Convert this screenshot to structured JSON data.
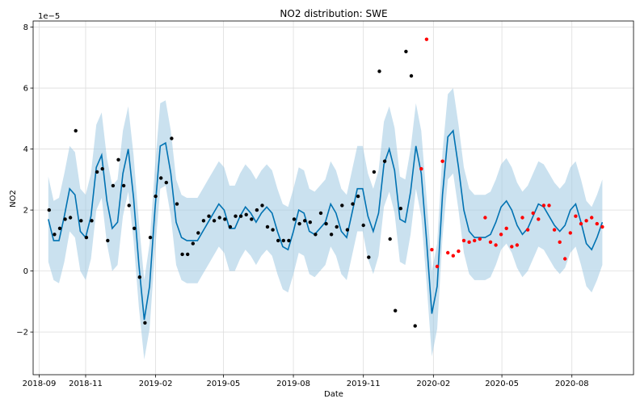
{
  "chart_data": {
    "type": "line",
    "title": "NO2 distribution: SWE",
    "xlabel": "Date",
    "ylabel": "NO2",
    "y_scale_label": "1e−5",
    "y_multiplier": 1e-05,
    "xlim": [
      "2018-08-24",
      "2020-10-21"
    ],
    "ylim": [
      -3.4,
      8.2
    ],
    "grid": true,
    "x_ticks": [
      {
        "date": "2018-09-01",
        "label": "2018-09"
      },
      {
        "date": "2018-11-01",
        "label": "2018-11"
      },
      {
        "date": "2019-02-01",
        "label": "2019-02"
      },
      {
        "date": "2019-05-01",
        "label": "2019-05"
      },
      {
        "date": "2019-08-01",
        "label": "2019-08"
      },
      {
        "date": "2019-11-01",
        "label": "2019-11"
      },
      {
        "date": "2020-02-01",
        "label": "2020-02"
      },
      {
        "date": "2020-05-01",
        "label": "2020-05"
      },
      {
        "date": "2020-08-01",
        "label": "2020-08"
      }
    ],
    "y_ticks": [
      {
        "value": -2,
        "label": "−2"
      },
      {
        "value": 0,
        "label": "0"
      },
      {
        "value": 2,
        "label": "2"
      },
      {
        "value": 4,
        "label": "4"
      },
      {
        "value": 6,
        "label": "6"
      },
      {
        "value": 8,
        "label": "8"
      }
    ],
    "colors": {
      "forecast_line": "#0072b2",
      "interval_fill": "#9ec9e2",
      "observed": "#000000",
      "holdout": "#ff0000",
      "grid": "#dddddd"
    },
    "forecast": {
      "x": [
        "2018-09-13",
        "2018-09-20",
        "2018-09-27",
        "2018-10-04",
        "2018-10-11",
        "2018-10-18",
        "2018-10-25",
        "2018-11-01",
        "2018-11-08",
        "2018-11-15",
        "2018-11-22",
        "2018-11-29",
        "2018-12-06",
        "2018-12-13",
        "2018-12-20",
        "2018-12-27",
        "2019-01-03",
        "2019-01-10",
        "2019-01-17",
        "2019-01-24",
        "2019-01-31",
        "2019-02-07",
        "2019-02-14",
        "2019-02-21",
        "2019-02-28",
        "2019-03-07",
        "2019-03-14",
        "2019-03-21",
        "2019-03-28",
        "2019-04-04",
        "2019-04-11",
        "2019-04-18",
        "2019-04-25",
        "2019-05-02",
        "2019-05-09",
        "2019-05-16",
        "2019-05-23",
        "2019-05-30",
        "2019-06-06",
        "2019-06-13",
        "2019-06-20",
        "2019-06-27",
        "2019-07-04",
        "2019-07-11",
        "2019-07-18",
        "2019-07-25",
        "2019-08-01",
        "2019-08-08",
        "2019-08-15",
        "2019-08-22",
        "2019-08-29",
        "2019-09-05",
        "2019-09-12",
        "2019-09-19",
        "2019-09-26",
        "2019-10-03",
        "2019-10-10",
        "2019-10-17",
        "2019-10-24",
        "2019-10-31",
        "2019-11-07",
        "2019-11-14",
        "2019-11-21",
        "2019-11-28",
        "2019-12-05",
        "2019-12-12",
        "2019-12-19",
        "2019-12-26",
        "2020-01-02",
        "2020-01-09",
        "2020-01-16",
        "2020-01-23",
        "2020-01-30",
        "2020-02-06",
        "2020-02-13",
        "2020-02-20",
        "2020-02-27",
        "2020-03-05",
        "2020-03-12",
        "2020-03-19",
        "2020-03-26",
        "2020-04-02",
        "2020-04-09",
        "2020-04-16",
        "2020-04-23",
        "2020-04-30",
        "2020-05-07",
        "2020-05-14",
        "2020-05-21",
        "2020-05-28",
        "2020-06-04",
        "2020-06-11",
        "2020-06-18",
        "2020-06-25",
        "2020-07-02",
        "2020-07-09",
        "2020-07-16",
        "2020-07-23",
        "2020-07-30",
        "2020-08-06",
        "2020-08-13",
        "2020-08-20",
        "2020-08-27",
        "2020-09-03",
        "2020-09-10"
      ],
      "yhat": [
        1.7,
        1.0,
        1.0,
        1.8,
        2.7,
        2.5,
        1.3,
        1.1,
        1.8,
        3.4,
        3.8,
        2.3,
        1.4,
        1.6,
        3.2,
        4.0,
        2.4,
        0.2,
        -1.6,
        -0.5,
        2.0,
        4.1,
        4.2,
        3.2,
        1.6,
        1.1,
        1.0,
        1.0,
        1.0,
        1.3,
        1.6,
        1.9,
        2.2,
        2.0,
        1.4,
        1.4,
        1.8,
        2.1,
        1.9,
        1.6,
        1.9,
        2.1,
        1.9,
        1.3,
        0.8,
        0.7,
        1.3,
        2.0,
        1.9,
        1.3,
        1.2,
        1.4,
        1.6,
        2.2,
        1.9,
        1.3,
        1.1,
        1.9,
        2.7,
        2.7,
        1.8,
        1.3,
        1.9,
        3.5,
        4.0,
        3.3,
        1.7,
        1.6,
        2.6,
        4.1,
        3.2,
        1.0,
        -1.4,
        -0.5,
        2.5,
        4.4,
        4.6,
        3.4,
        2.0,
        1.3,
        1.1,
        1.1,
        1.1,
        1.2,
        1.6,
        2.1,
        2.3,
        2.0,
        1.5,
        1.2,
        1.4,
        1.8,
        2.2,
        2.1,
        1.8,
        1.5,
        1.3,
        1.5,
        2.0,
        2.2,
        1.6,
        0.9,
        0.7,
        1.1,
        1.6,
        2.1,
        2.0,
        1.5,
        1.2,
        1.3,
        1.8,
        2.3,
        2.3,
        1.8
      ],
      "yhat_lower": [
        0.3,
        -0.3,
        -0.4,
        0.3,
        1.3,
        1.1,
        0.0,
        -0.3,
        0.4,
        2.0,
        2.4,
        0.9,
        0.0,
        0.2,
        1.8,
        2.6,
        1.0,
        -1.2,
        -2.9,
        -1.9,
        0.6,
        2.7,
        2.8,
        1.8,
        0.2,
        -0.3,
        -0.4,
        -0.4,
        -0.4,
        -0.1,
        0.2,
        0.5,
        0.8,
        0.6,
        0.0,
        0.0,
        0.4,
        0.7,
        0.5,
        0.2,
        0.5,
        0.7,
        0.5,
        -0.1,
        -0.6,
        -0.7,
        -0.1,
        0.6,
        0.5,
        -0.1,
        -0.2,
        0.0,
        0.2,
        0.8,
        0.5,
        -0.1,
        -0.3,
        0.5,
        1.3,
        1.3,
        0.4,
        -0.1,
        0.5,
        2.1,
        2.6,
        1.9,
        0.3,
        0.2,
        1.2,
        2.7,
        1.8,
        -0.4,
        -2.8,
        -1.9,
        1.1,
        3.0,
        3.2,
        2.0,
        0.6,
        -0.1,
        -0.3,
        -0.3,
        -0.3,
        -0.2,
        0.2,
        0.7,
        0.9,
        0.6,
        0.1,
        -0.2,
        0.0,
        0.4,
        0.8,
        0.7,
        0.4,
        0.1,
        -0.1,
        0.1,
        0.6,
        0.8,
        0.2,
        -0.5,
        -0.7,
        -0.3,
        0.2,
        0.7,
        0.6,
        0.1,
        -0.2,
        -0.1,
        0.4,
        0.9,
        0.9,
        0.4
      ],
      "yhat_upper": [
        3.1,
        2.3,
        2.4,
        3.2,
        4.1,
        3.9,
        2.7,
        2.5,
        3.2,
        4.8,
        5.2,
        3.7,
        2.8,
        3.0,
        4.6,
        5.4,
        3.8,
        1.6,
        -0.3,
        0.9,
        3.4,
        5.5,
        5.6,
        4.6,
        3.0,
        2.5,
        2.4,
        2.4,
        2.4,
        2.7,
        3.0,
        3.3,
        3.6,
        3.4,
        2.8,
        2.8,
        3.2,
        3.5,
        3.3,
        3.0,
        3.3,
        3.5,
        3.3,
        2.7,
        2.2,
        2.1,
        2.7,
        3.4,
        3.3,
        2.7,
        2.6,
        2.8,
        3.0,
        3.6,
        3.3,
        2.7,
        2.5,
        3.3,
        4.1,
        4.1,
        3.2,
        2.7,
        3.3,
        4.9,
        5.4,
        4.7,
        3.1,
        3.0,
        4.0,
        5.5,
        4.6,
        2.4,
        0.0,
        0.9,
        3.9,
        5.8,
        6.0,
        4.8,
        3.4,
        2.7,
        2.5,
        2.5,
        2.5,
        2.6,
        3.0,
        3.5,
        3.7,
        3.4,
        2.9,
        2.6,
        2.8,
        3.2,
        3.6,
        3.5,
        3.2,
        2.9,
        2.7,
        2.9,
        3.4,
        3.6,
        3.0,
        2.3,
        2.1,
        2.5,
        3.0,
        3.5,
        3.4,
        2.9,
        2.6,
        2.7,
        3.2,
        3.7,
        3.7,
        3.2
      ]
    },
    "series": [
      {
        "marker": "dot",
        "color": "#000000",
        "x": [
          "2018-09-14",
          "2018-09-21",
          "2018-09-28",
          "2018-10-05",
          "2018-10-12",
          "2018-10-19",
          "2018-10-26",
          "2018-11-02",
          "2018-11-09",
          "2018-11-16",
          "2018-11-23",
          "2018-11-30",
          "2018-12-07",
          "2018-12-14",
          "2018-12-21",
          "2018-12-28",
          "2019-01-04",
          "2019-01-11",
          "2019-01-18",
          "2019-01-25",
          "2019-02-01",
          "2019-02-08",
          "2019-02-15",
          "2019-02-22",
          "2019-03-01",
          "2019-03-08",
          "2019-03-15",
          "2019-03-22",
          "2019-03-29",
          "2019-04-05",
          "2019-04-12",
          "2019-04-19",
          "2019-04-26",
          "2019-05-03",
          "2019-05-10",
          "2019-05-17",
          "2019-05-24",
          "2019-05-31",
          "2019-06-07",
          "2019-06-14",
          "2019-06-21",
          "2019-06-28",
          "2019-07-05",
          "2019-07-12",
          "2019-07-19",
          "2019-07-26",
          "2019-08-02",
          "2019-08-09",
          "2019-08-16",
          "2019-08-23",
          "2019-08-30",
          "2019-09-06",
          "2019-09-13",
          "2019-09-20",
          "2019-09-27",
          "2019-10-04",
          "2019-10-11",
          "2019-10-18",
          "2019-10-25",
          "2019-11-01",
          "2019-11-08",
          "2019-11-15",
          "2019-11-22",
          "2019-11-29",
          "2019-12-06",
          "2019-12-13",
          "2019-12-20",
          "2019-12-27",
          "2020-01-03"
        ],
        "y": [
          2.0,
          1.2,
          1.4,
          1.7,
          1.75,
          4.6,
          1.65,
          1.1,
          1.65,
          3.25,
          3.35,
          1.0,
          2.8,
          3.65,
          2.8,
          2.15,
          1.4,
          -0.2,
          -1.7,
          1.1,
          2.45,
          3.05,
          2.9,
          4.35,
          2.2,
          0.55,
          0.55,
          0.9,
          1.25,
          1.65,
          1.8,
          1.65,
          1.75,
          1.7,
          1.45,
          1.8,
          1.8,
          1.85,
          1.7,
          2.0,
          2.15,
          1.45,
          1.35,
          1.0,
          1.0,
          1.0,
          1.7,
          1.55,
          1.65,
          1.6,
          1.2,
          1.9,
          1.55,
          1.2,
          1.45,
          2.15,
          1.35,
          2.2,
          2.45,
          1.5,
          0.45,
          3.25,
          6.55,
          3.6,
          1.05,
          -1.3,
          2.05,
          7.2,
          6.4
        ]
      },
      {
        "marker": "dot",
        "color": "#ff0000",
        "x": [
          "2020-01-16",
          "2020-01-23",
          "2020-01-30",
          "2020-02-06",
          "2020-02-13",
          "2020-02-20",
          "2020-02-27",
          "2020-03-05",
          "2020-03-12",
          "2020-03-19",
          "2020-03-26",
          "2020-04-02",
          "2020-04-09",
          "2020-04-16",
          "2020-04-23",
          "2020-04-30",
          "2020-05-07",
          "2020-05-14",
          "2020-05-21",
          "2020-05-28",
          "2020-06-04",
          "2020-06-11",
          "2020-06-18",
          "2020-06-25",
          "2020-07-02",
          "2020-07-09",
          "2020-07-16",
          "2020-07-23",
          "2020-07-30",
          "2020-08-06",
          "2020-08-13",
          "2020-08-20",
          "2020-08-27",
          "2020-09-03",
          "2020-09-10"
        ],
        "y": [
          3.35,
          7.6,
          0.7,
          0.15,
          3.6,
          0.6,
          0.5,
          0.65,
          1.0,
          0.95,
          1.0,
          1.05,
          1.75,
          0.95,
          0.85,
          1.2,
          1.4,
          0.8,
          0.85,
          1.75,
          1.35,
          1.9,
          1.7,
          2.15,
          2.15,
          1.35,
          0.95,
          0.4,
          1.25,
          1.8,
          1.55,
          1.65,
          1.75,
          1.55,
          1.45
        ]
      },
      {
        "marker": "dot",
        "color": "#000000",
        "x": [
          "2020-01-08"
        ],
        "y": [
          -1.8
        ]
      }
    ]
  }
}
